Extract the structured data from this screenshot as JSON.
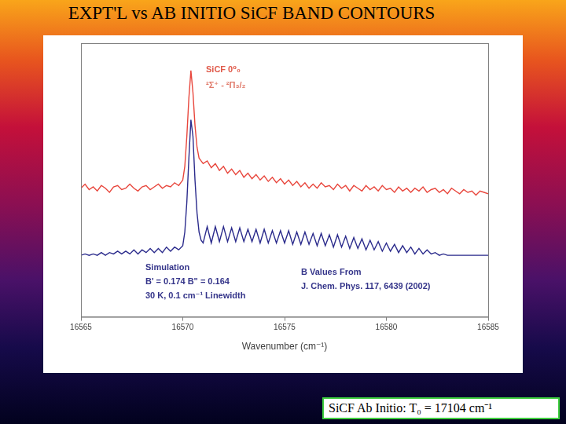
{
  "slide": {
    "title": "EXPT'L vs AB INITIO SiCF BAND CONTOURS",
    "note": "SiCF Ab Initio: T₀ = 17104 cm⁻¹"
  },
  "chart_data": {
    "type": "line",
    "x_label": "Wavenumber (cm⁻¹)",
    "x": [
      16565,
      16565.2,
      16565.4,
      16565.6,
      16565.8,
      16566,
      16566.2,
      16566.4,
      16566.6,
      16566.8,
      16567,
      16567.2,
      16567.4,
      16567.6,
      16567.8,
      16568,
      16568.2,
      16568.4,
      16568.6,
      16568.8,
      16569,
      16569.2,
      16569.4,
      16569.6,
      16569.8,
      16570,
      16570.1,
      16570.2,
      16570.3,
      16570.4,
      16570.5,
      16570.6,
      16570.7,
      16570.8,
      16570.9,
      16571,
      16571.2,
      16571.4,
      16571.6,
      16571.8,
      16572,
      16572.2,
      16572.4,
      16572.6,
      16572.8,
      16573,
      16573.2,
      16573.4,
      16573.6,
      16573.8,
      16574,
      16574.2,
      16574.4,
      16574.6,
      16574.8,
      16575,
      16575.2,
      16575.4,
      16575.6,
      16575.8,
      16576,
      16576.2,
      16576.4,
      16576.6,
      16576.8,
      16577,
      16577.2,
      16577.4,
      16577.6,
      16577.8,
      16578,
      16578.2,
      16578.4,
      16578.6,
      16578.8,
      16579,
      16579.2,
      16579.4,
      16579.6,
      16579.8,
      16580,
      16580.2,
      16580.4,
      16580.6,
      16580.8,
      16581,
      16581.2,
      16581.4,
      16581.6,
      16581.8,
      16582,
      16582.2,
      16582.4,
      16582.6,
      16582.8,
      16583,
      16583.2,
      16583.4,
      16583.6,
      16583.8,
      16584,
      16584.2,
      16584.4,
      16584.6,
      16584.8,
      16585
    ],
    "series": [
      {
        "color": "#e8463c",
        "values": [
          47,
          48.5,
          46.5,
          47.5,
          46,
          48,
          47,
          45.5,
          47.5,
          48,
          46.5,
          47,
          48.5,
          47,
          46,
          47.5,
          48,
          46.5,
          47.5,
          48.5,
          47,
          48,
          47.5,
          49,
          48,
          50,
          55,
          66,
          80,
          90,
          82,
          70,
          62,
          58,
          57,
          56,
          57,
          54.5,
          56,
          53.5,
          55,
          52.5,
          54,
          52,
          53.5,
          51,
          52.5,
          50.5,
          52,
          50,
          51.5,
          49.5,
          51,
          49,
          50.5,
          48.5,
          50,
          48,
          49.5,
          47.5,
          49,
          47,
          48.5,
          47,
          49,
          47.5,
          48,
          46.5,
          48.5,
          47,
          48,
          46,
          48,
          47,
          46,
          48,
          46.5,
          47.5,
          46,
          48,
          46.5,
          47,
          45.5,
          47.5,
          46,
          47,
          45.5,
          47,
          46,
          47.5,
          45.5,
          46.5,
          47,
          45.5,
          46.5,
          45,
          47,
          46,
          45,
          46.5,
          45.5,
          46,
          44.5,
          46,
          45.5,
          45
        ]
      },
      {
        "color": "#2b2b8c",
        "values": [
          22.5,
          23,
          22.5,
          23,
          22.5,
          23.5,
          22.5,
          23.5,
          23,
          24,
          23,
          24,
          23,
          24.5,
          23,
          24.5,
          23.5,
          25,
          23.5,
          25,
          23.5,
          25.5,
          24,
          25.5,
          24.5,
          26,
          31,
          42,
          58,
          72,
          66,
          50,
          38,
          31,
          28,
          27,
          33,
          27,
          33,
          27.5,
          33,
          27.5,
          32.5,
          27.5,
          32.5,
          27.5,
          32,
          27.5,
          32,
          27,
          32,
          27,
          31.5,
          27,
          31.5,
          27,
          31.5,
          26.5,
          31,
          26.5,
          31,
          26.5,
          30.5,
          26,
          30.5,
          26,
          30,
          25.5,
          30,
          25.5,
          29.5,
          25,
          29,
          25,
          28.5,
          24.5,
          28,
          24.5,
          27.5,
          24,
          27,
          24,
          26.5,
          23.5,
          26,
          23.5,
          25.5,
          23,
          25,
          23,
          24.5,
          23,
          23.5,
          22.5,
          23,
          22.5,
          22.5,
          22.5,
          22.5,
          22.5,
          22.5,
          22.5,
          22.5,
          22.5,
          22.5,
          22.5
        ]
      }
    ],
    "xlim": [
      16565,
      16585
    ],
    "xticks": [
      16565,
      16570,
      16575,
      16580,
      16585
    ],
    "ylim": [
      0,
      100
    ],
    "tick_labels": "x",
    "grid": false,
    "annotations": [
      {
        "text": "SiCF 0⁰₀",
        "color": "#e05a4a"
      },
      {
        "text": "²Σ⁺ - ²Π₃/₂",
        "color": "#e07a6a"
      },
      {
        "text": "Simulation",
        "color": "#35358a"
      },
      {
        "text": "B' = 0.174  B\" = 0.164",
        "color": "#35358a"
      },
      {
        "text": "30 K, 0.1 cm⁻¹ Linewidth",
        "color": "#35358a"
      },
      {
        "text": "B Values From",
        "color": "#35358a"
      },
      {
        "text": "J. Chem. Phys. 117, 6439 (2002)",
        "color": "#35358a"
      }
    ]
  }
}
